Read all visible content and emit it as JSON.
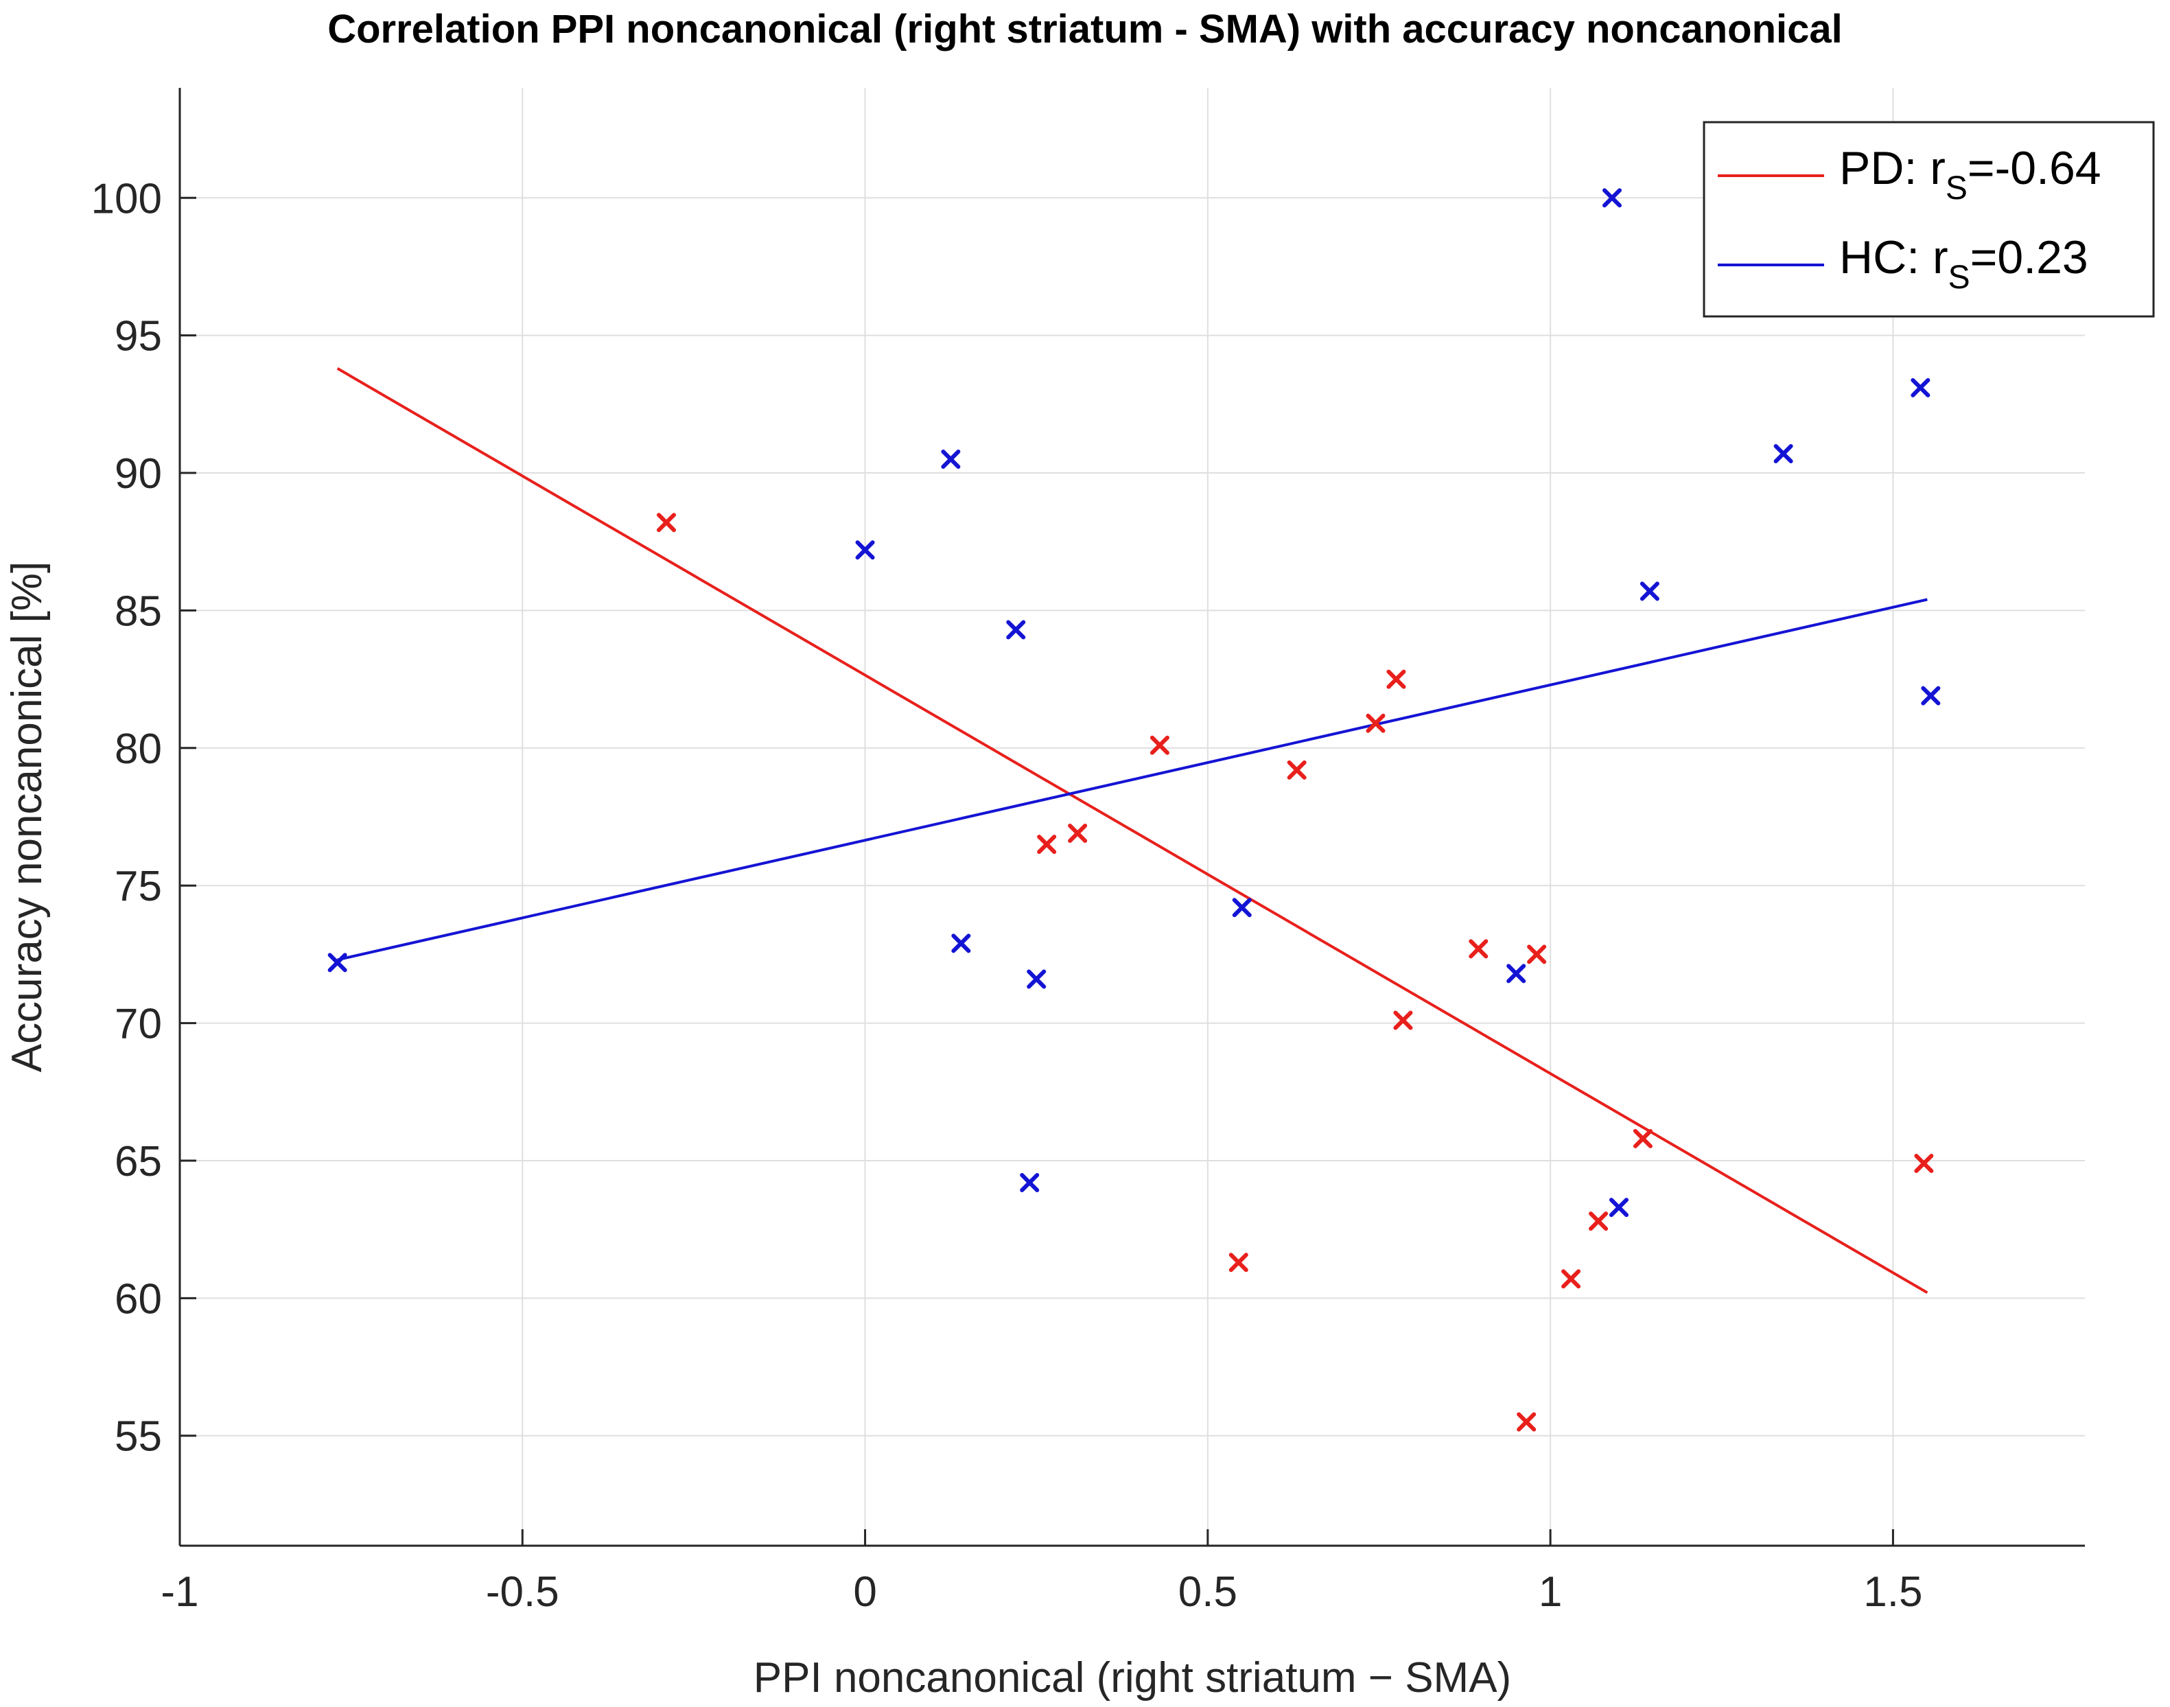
{
  "chart_data": {
    "type": "scatter",
    "title": "Correlation PPI noncanonical (right striatum - SMA) with accuracy noncanonical",
    "xlabel": "PPI noncanonical (right striatum − SMA)",
    "ylabel": "Accuracy noncanonical [%]",
    "xlim": [
      -1.0,
      1.78
    ],
    "ylim": [
      51,
      104
    ],
    "xticks": [
      -1,
      -0.5,
      0,
      0.5,
      1,
      1.5
    ],
    "xtick_labels": [
      "-1",
      "-0.5",
      "0",
      "0.5",
      "1",
      "1.5"
    ],
    "yticks": [
      55,
      60,
      65,
      70,
      75,
      80,
      85,
      90,
      95,
      100
    ],
    "ytick_labels": [
      "55",
      "60",
      "65",
      "70",
      "75",
      "80",
      "85",
      "90",
      "95",
      "100"
    ],
    "grid": true,
    "legend_position": "top-right",
    "series": [
      {
        "name": "PD",
        "color": "#e8201c",
        "marker": "x",
        "legend_prefix": "PD: r",
        "legend_sub": "S",
        "legend_suffix": "=-0.64",
        "points": [
          [
            -0.29,
            88.2
          ],
          [
            0.265,
            76.5
          ],
          [
            0.31,
            76.9
          ],
          [
            0.43,
            80.1
          ],
          [
            0.545,
            61.3
          ],
          [
            0.63,
            79.2
          ],
          [
            0.745,
            80.9
          ],
          [
            0.775,
            82.5
          ],
          [
            0.785,
            70.1
          ],
          [
            0.895,
            72.7
          ],
          [
            0.965,
            55.5
          ],
          [
            0.98,
            72.5
          ],
          [
            1.03,
            60.7
          ],
          [
            1.07,
            62.8
          ],
          [
            1.135,
            65.8
          ],
          [
            1.545,
            64.9
          ]
        ],
        "fit_line": [
          [
            -0.77,
            93.8
          ],
          [
            1.55,
            60.2
          ]
        ]
      },
      {
        "name": "HC",
        "color": "#1414d4",
        "marker": "x",
        "legend_prefix": "HC: r",
        "legend_sub": "S",
        "legend_suffix": "=0.23",
        "points": [
          [
            -0.77,
            72.2
          ],
          [
            0.0,
            87.2
          ],
          [
            0.125,
            90.5
          ],
          [
            0.14,
            72.9
          ],
          [
            0.22,
            84.3
          ],
          [
            0.24,
            64.2
          ],
          [
            0.25,
            71.6
          ],
          [
            0.55,
            74.2
          ],
          [
            0.95,
            71.8
          ],
          [
            1.09,
            100.0
          ],
          [
            1.1,
            63.3
          ],
          [
            1.145,
            85.7
          ],
          [
            1.34,
            90.7
          ],
          [
            1.54,
            93.1
          ],
          [
            1.555,
            81.9
          ]
        ],
        "fit_line": [
          [
            -0.77,
            72.3
          ],
          [
            1.55,
            85.4
          ]
        ]
      }
    ]
  }
}
